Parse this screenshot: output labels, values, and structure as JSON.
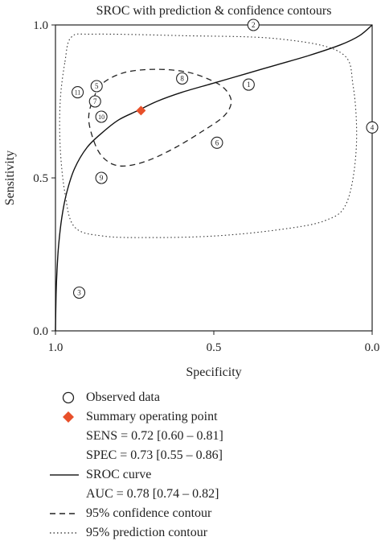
{
  "chart_data": {
    "type": "scatter",
    "title": "SROC with prediction & confidence contours",
    "xlabel": "Specificity",
    "ylabel": "Sensitivity",
    "xlim": [
      1.0,
      0.0
    ],
    "ylim": [
      0.0,
      1.0
    ],
    "x_reversed": true,
    "x_ticks": [
      1.0,
      0.5,
      0.0
    ],
    "x_tick_labels": [
      "1.0",
      "0.5",
      "0.0"
    ],
    "y_ticks": [
      0.0,
      0.5,
      1.0
    ],
    "y_tick_labels": [
      "0.0",
      "0.5",
      "1.0"
    ],
    "grid": false,
    "legend_position": "below",
    "observed": [
      {
        "label": "1",
        "specificity": 0.39,
        "sensitivity": 0.805
      },
      {
        "label": "2",
        "specificity": 0.375,
        "sensitivity": 1.0
      },
      {
        "label": "3",
        "specificity": 0.925,
        "sensitivity": 0.125
      },
      {
        "label": "4",
        "specificity": 0.0,
        "sensitivity": 0.665
      },
      {
        "label": "5",
        "specificity": 0.87,
        "sensitivity": 0.8
      },
      {
        "label": "6",
        "specificity": 0.49,
        "sensitivity": 0.615
      },
      {
        "label": "7",
        "specificity": 0.875,
        "sensitivity": 0.75
      },
      {
        "label": "8",
        "specificity": 0.6,
        "sensitivity": 0.825
      },
      {
        "label": "9",
        "specificity": 0.855,
        "sensitivity": 0.5
      },
      {
        "label": "10",
        "specificity": 0.855,
        "sensitivity": 0.7
      },
      {
        "label": "11",
        "specificity": 0.93,
        "sensitivity": 0.78
      }
    ],
    "summary_point": {
      "specificity": 0.73,
      "sensitivity": 0.72,
      "color": "#e8502a"
    },
    "sroc_curve": [
      [
        1.0,
        0.0
      ],
      [
        0.998,
        0.12
      ],
      [
        0.995,
        0.2
      ],
      [
        0.99,
        0.28
      ],
      [
        0.98,
        0.37
      ],
      [
        0.965,
        0.45
      ],
      [
        0.94,
        0.53
      ],
      [
        0.9,
        0.6
      ],
      [
        0.85,
        0.65
      ],
      [
        0.8,
        0.69
      ],
      [
        0.74,
        0.72
      ],
      [
        0.68,
        0.75
      ],
      [
        0.6,
        0.78
      ],
      [
        0.5,
        0.81
      ],
      [
        0.4,
        0.84
      ],
      [
        0.3,
        0.87
      ],
      [
        0.2,
        0.9
      ],
      [
        0.1,
        0.935
      ],
      [
        0.04,
        0.965
      ],
      [
        0.0,
        1.0
      ]
    ],
    "confidence_contour": [
      [
        0.88,
        0.76
      ],
      [
        0.85,
        0.81
      ],
      [
        0.78,
        0.845
      ],
      [
        0.68,
        0.855
      ],
      [
        0.58,
        0.845
      ],
      [
        0.5,
        0.815
      ],
      [
        0.46,
        0.785
      ],
      [
        0.445,
        0.745
      ],
      [
        0.47,
        0.7
      ],
      [
        0.54,
        0.65
      ],
      [
        0.62,
        0.6
      ],
      [
        0.7,
        0.56
      ],
      [
        0.77,
        0.54
      ],
      [
        0.82,
        0.545
      ],
      [
        0.86,
        0.58
      ],
      [
        0.885,
        0.64
      ],
      [
        0.895,
        0.7
      ]
    ],
    "prediction_contour": [
      [
        0.97,
        0.88
      ],
      [
        0.95,
        0.96
      ],
      [
        0.88,
        0.97
      ],
      [
        0.6,
        0.965
      ],
      [
        0.3,
        0.955
      ],
      [
        0.1,
        0.91
      ],
      [
        0.06,
        0.8
      ],
      [
        0.05,
        0.6
      ],
      [
        0.08,
        0.42
      ],
      [
        0.15,
        0.36
      ],
      [
        0.3,
        0.33
      ],
      [
        0.5,
        0.31
      ],
      [
        0.7,
        0.305
      ],
      [
        0.85,
        0.31
      ],
      [
        0.94,
        0.34
      ],
      [
        0.97,
        0.45
      ],
      [
        0.985,
        0.6
      ],
      [
        0.985,
        0.75
      ]
    ]
  },
  "legend": {
    "observed": "Observed data",
    "summary": "Summary operating point",
    "sens": "SENS = 0.72 [0.60 – 0.81]",
    "spec": "SPEC = 0.73 [0.55 – 0.86]",
    "sroc": "SROC curve",
    "auc": "AUC = 0.78 [0.74 – 0.82]",
    "confidence": "95% confidence contour",
    "prediction": "95% prediction contour"
  }
}
